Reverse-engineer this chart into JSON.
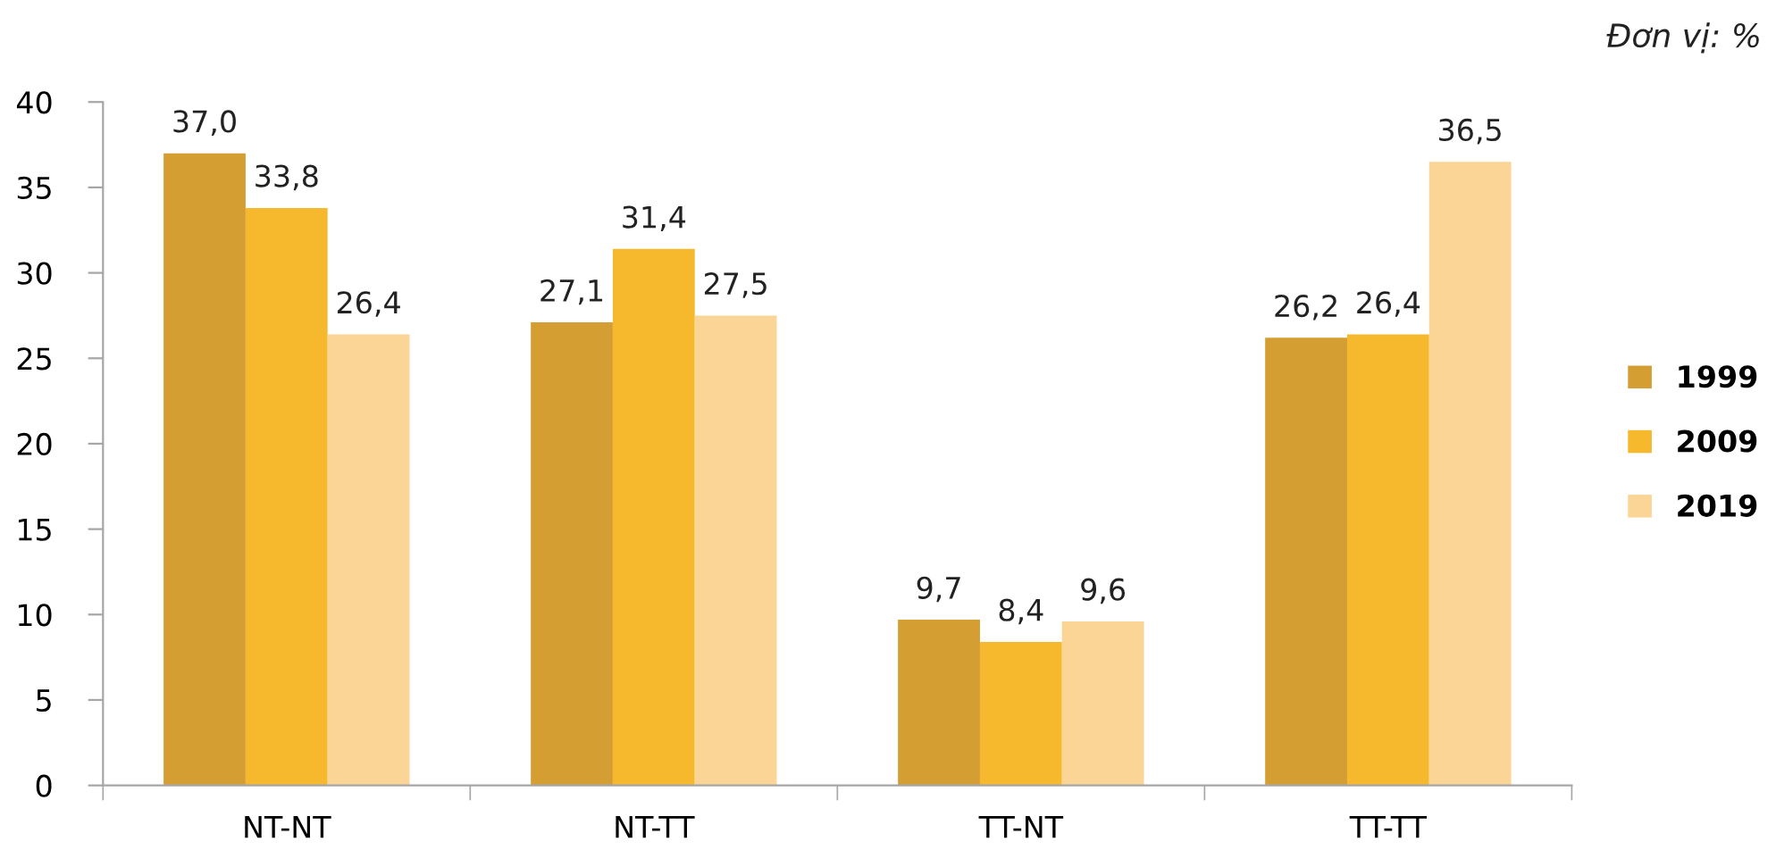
{
  "chart_data": {
    "type": "bar",
    "categories": [
      "NT-NT",
      "NT-TT",
      "TT-NT",
      "TT-TT"
    ],
    "series": [
      {
        "name": "1999",
        "color": "#d49e33",
        "values": [
          37.0,
          27.1,
          9.7,
          26.2
        ],
        "value_labels": [
          "37,0",
          "27,1",
          "9,7",
          "26,2"
        ]
      },
      {
        "name": "2009",
        "color": "#f6b92e",
        "values": [
          33.8,
          31.4,
          8.4,
          26.4
        ],
        "value_labels": [
          "33,8",
          "31,4",
          "8,4",
          "26,4"
        ]
      },
      {
        "name": "2019",
        "color": "#fad596",
        "values": [
          26.4,
          27.5,
          9.6,
          36.5
        ],
        "value_labels": [
          "26,4",
          "27,5",
          "9,6",
          "36,5"
        ]
      }
    ],
    "ylim": [
      0,
      40
    ],
    "yticks": [
      0,
      5,
      10,
      15,
      20,
      25,
      30,
      35,
      40
    ],
    "annotations": [
      "Đơn vị: %"
    ],
    "legend": "right",
    "grid": false
  }
}
